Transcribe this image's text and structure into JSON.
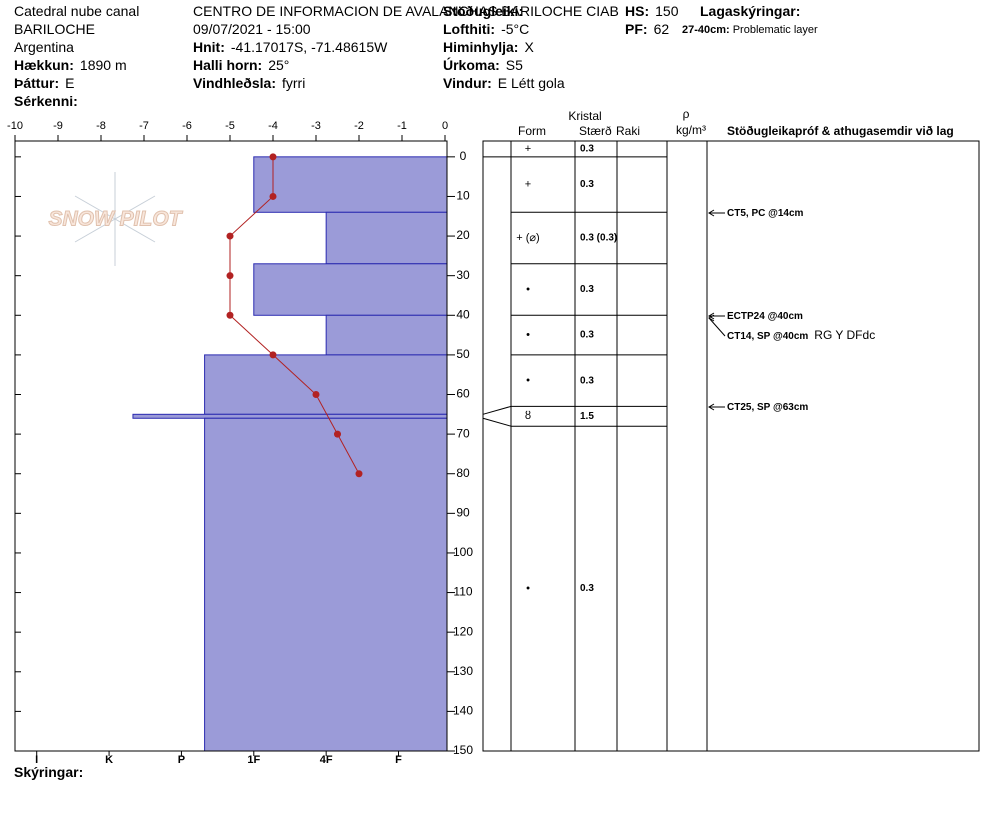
{
  "fields": [
    {
      "value": "Catedral nube canal"
    },
    {
      "value": "BARILOCHE"
    },
    {
      "value": "Argentina"
    },
    {
      "label": "Hækkun:",
      "value": "1890 m"
    },
    {
      "label": "Þáttur:",
      "value": "E"
    },
    {
      "label": "Sérkenni:"
    },
    {
      "value": "CENTRO DE INFORMACION DE AVALANCHAS BARILOCHE CIAB"
    },
    {
      "value": "09/07/2021 - 15:00"
    },
    {
      "label": "Hnit:",
      "value": "-41.17017S, -71.48615W"
    },
    {
      "label": "Halli horn:",
      "value": "25°"
    },
    {
      "label": "Vindhleðsla:",
      "value": "fyrri"
    },
    {
      "label": "Stöðugleiki:"
    },
    {
      "label": "Lofthiti:",
      "value": "-5°C"
    },
    {
      "label": "Himinhylja:",
      "value": "X"
    },
    {
      "label": "Úrkoma:",
      "value": "S5"
    },
    {
      "label": "Vindur:",
      "value": "E Létt gola"
    },
    {
      "label": "HS:",
      "value": "150"
    },
    {
      "label": "PF:",
      "value": "62"
    },
    {
      "label": "Lagaskýringar:"
    },
    {
      "label": "27-40cm:",
      "value": "Problematic layer"
    },
    {
      "label": "Skýringar:"
    }
  ],
  "logo": "SNOW PILOT",
  "chart_data": [
    {
      "type": "bar",
      "color": "#9b9bd8",
      "edge_color": "#2a2ab0",
      "values": [
        3,
        2,
        3,
        2,
        3.68,
        4.67,
        3.68
      ],
      "y_top": [
        0,
        14,
        27,
        40,
        50,
        65,
        66
      ],
      "y_bottom": [
        14,
        27,
        40,
        50,
        65,
        66,
        150
      ],
      "xlim": [
        6.3,
        0.33
      ],
      "xticks": [
        {
          "value": 6,
          "label": "I"
        },
        {
          "value": 5,
          "label": "K"
        },
        {
          "value": 4,
          "label": "P"
        },
        {
          "value": 3,
          "label": "1F"
        },
        {
          "value": 2,
          "label": "4F"
        },
        {
          "value": 1,
          "label": "F"
        }
      ],
      "ylim": [
        -4,
        150
      ],
      "yticks": [
        0,
        10,
        20,
        30,
        40,
        50,
        60,
        70,
        80,
        90,
        100,
        110,
        120,
        130,
        140,
        150
      ]
    },
    {
      "type": "line",
      "color": "#b22222",
      "values": [
        -4,
        -4,
        -5,
        -5,
        -5,
        -4,
        -3,
        -2.5,
        -2
      ],
      "depths": [
        0,
        10,
        20,
        30,
        40,
        50,
        60,
        70,
        80
      ],
      "xlim": [
        -10,
        0
      ],
      "xticks": [
        -10,
        -9,
        -8,
        -7,
        -6,
        -5,
        -4,
        -3,
        -2,
        -1,
        0
      ]
    }
  ],
  "grain_table": {
    "header": {
      "crystal": "Kristal",
      "form": "Form",
      "size": "Stærð",
      "moisture": "Raki",
      "rho": "ρ",
      "density_unit": "kg/m³",
      "tests": "Stöðugleikapróf & athugasemdir við lag"
    },
    "boundaries": [
      0,
      14,
      27,
      40,
      50,
      63,
      68
    ],
    "rows": [
      {
        "form": "+",
        "size": "0.3"
      },
      {
        "form": "+",
        "size": "0.3"
      },
      {
        "form": "+ (⌀)",
        "size": "0.3 (0.3)"
      },
      {
        "form": "•",
        "size": "0.3"
      },
      {
        "form": "•",
        "size": "0.3"
      },
      {
        "form": "•",
        "size": "0.3"
      },
      {
        "form": "ȣ",
        "size": "1.5"
      },
      {
        "form": "•",
        "size": "0.3"
      }
    ],
    "tests": [
      {
        "text": "CT5, PC @14cm"
      },
      {
        "text": "ECTP24 @40cm"
      },
      {
        "text": "CT14, SP @40cm",
        "note": "RG Y DFdc"
      },
      {
        "text": "CT25, SP @63cm"
      }
    ]
  }
}
